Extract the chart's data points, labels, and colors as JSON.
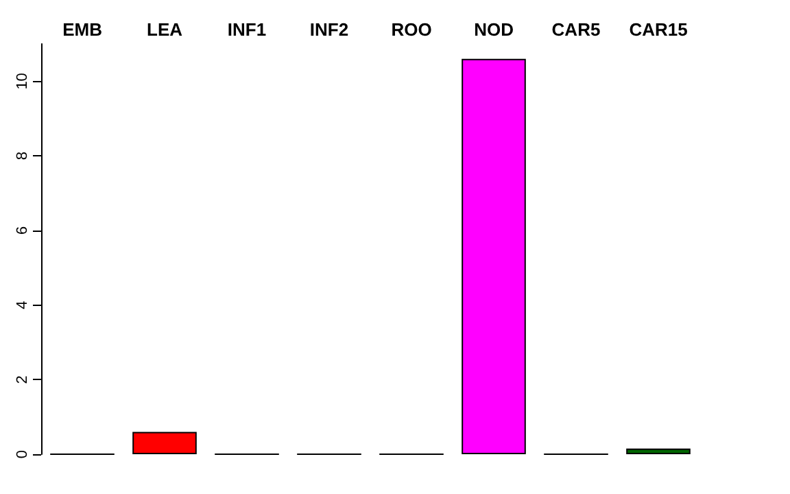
{
  "chart_data": {
    "type": "bar",
    "categories": [
      "EMB",
      "LEA",
      "INF1",
      "INF2",
      "ROO",
      "NOD",
      "CAR5",
      "CAR15"
    ],
    "values": [
      0,
      0.6,
      0,
      0,
      0,
      10.6,
      0,
      0.15
    ],
    "colors": [
      "#000000",
      "#ff0000",
      "#000000",
      "#000000",
      "#000000",
      "#ff00ff",
      "#000000",
      "#006400"
    ],
    "ylim": [
      0,
      11
    ],
    "yticks": [
      0,
      2,
      4,
      6,
      8,
      10
    ],
    "grid": false
  }
}
